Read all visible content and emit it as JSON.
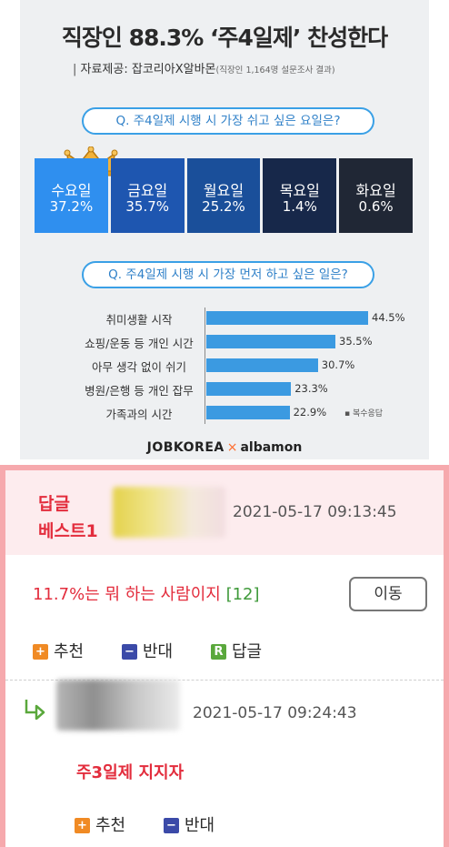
{
  "infographic": {
    "title": "직장인 88.3% ‘주4일제’ 찬성한다",
    "source_label": "자료제공: 잡코리아X알바몬",
    "source_note": "(직장인 1,164명 설문조사 결과)",
    "footnote": "▪ 복수응답",
    "logo_left": "JOBKOREA",
    "logo_sep": "×",
    "logo_right": "albamon"
  },
  "chart_data": [
    {
      "type": "bar",
      "title": "Q. 주4일제 시행 시 가장 쉬고 싶은 요일은?",
      "categories": [
        "수요일",
        "금요일",
        "월요일",
        "목요일",
        "화요일"
      ],
      "values": [
        37.2,
        35.7,
        25.2,
        1.4,
        0.6
      ],
      "value_labels": [
        "37.2%",
        "35.7%",
        "25.2%",
        "1.4%",
        "0.6%"
      ],
      "colors": [
        "#2f8fef",
        "#1e56b0",
        "#1a4f9a",
        "#17284a",
        "#202735"
      ]
    },
    {
      "type": "bar",
      "title": "Q. 주4일제 시행 시 가장 먼저 하고 싶은 일은?",
      "categories": [
        "취미생활 시작",
        "쇼핑/운동 등 개인 시간",
        "아무 생각 없이 쉬기",
        "병원/은행 등 개인 잡무",
        "가족과의 시간"
      ],
      "values": [
        44.5,
        35.5,
        30.7,
        23.3,
        22.9
      ],
      "value_labels": [
        "44.5%",
        "35.5%",
        "30.7%",
        "23.3%",
        "22.9%"
      ],
      "color": "#3b9ae1"
    }
  ],
  "comments": {
    "best": {
      "label_line1": "답글",
      "label_line2": "베스트1",
      "timestamp": "2021-05-17 09:13:45",
      "text": "11.7%는 뭐 하는 사람이지",
      "count": "[12]",
      "move_button": "이동",
      "recommend_label": "추천",
      "oppose_label": "반대",
      "reply_label": "답글",
      "recommend_icon": "+",
      "oppose_icon": "−",
      "reply_icon": "R"
    },
    "reply": {
      "timestamp": "2021-05-17 09:24:43",
      "text": "주3일제 지지자",
      "recommend_label": "추천",
      "oppose_label": "반대",
      "recommend_icon": "+",
      "oppose_icon": "−"
    }
  },
  "colors": {
    "accent_red": "#e32d3d",
    "question_blue": "#2f80c8",
    "bar_blue": "#3b9ae1",
    "best_bg": "#fdecee",
    "frame_pink": "#f6a9ad"
  }
}
